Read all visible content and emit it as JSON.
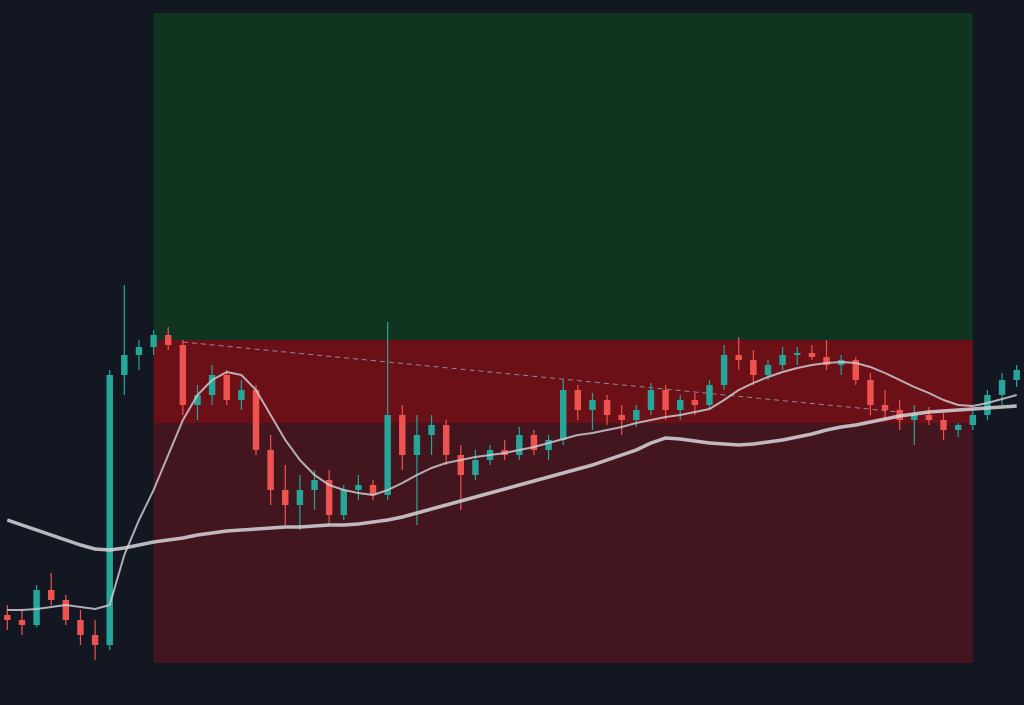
{
  "chart_data": {
    "type": "candlestick",
    "ylim": [
      0,
      705
    ],
    "colors": {
      "up": "#26a69a",
      "down": "#ef5350",
      "background": "#131722"
    },
    "open": [
      90,
      85,
      80,
      115,
      105,
      85,
      70,
      60,
      330,
      350,
      358,
      370,
      360,
      300,
      310,
      330,
      305,
      315,
      255,
      215,
      200,
      215,
      225,
      190,
      215,
      220,
      210,
      290,
      250,
      270,
      280,
      250,
      230,
      245,
      255,
      250,
      270,
      255,
      265,
      315,
      295,
      305,
      290,
      285,
      295,
      315,
      295,
      305,
      300,
      320,
      350,
      345,
      330,
      340,
      350,
      352,
      348,
      340,
      345,
      325,
      300,
      295,
      285,
      290,
      285,
      275,
      280,
      290,
      310,
      325
    ],
    "high": [
      100,
      95,
      120,
      132,
      110,
      95,
      85,
      335,
      420,
      365,
      375,
      378,
      365,
      320,
      340,
      335,
      325,
      320,
      270,
      240,
      230,
      235,
      235,
      220,
      230,
      225,
      383,
      300,
      290,
      290,
      285,
      260,
      255,
      260,
      265,
      278,
      275,
      270,
      325,
      320,
      312,
      310,
      300,
      300,
      322,
      320,
      310,
      312,
      325,
      360,
      368,
      355,
      345,
      358,
      358,
      360,
      365,
      350,
      348,
      332,
      315,
      305,
      300,
      298,
      292,
      282,
      295,
      315,
      332,
      340
    ],
    "low": [
      75,
      70,
      78,
      100,
      80,
      60,
      45,
      55,
      310,
      335,
      350,
      355,
      290,
      285,
      300,
      300,
      295,
      250,
      200,
      180,
      175,
      195,
      180,
      185,
      205,
      205,
      205,
      235,
      180,
      250,
      240,
      195,
      225,
      240,
      245,
      245,
      250,
      245,
      260,
      285,
      275,
      280,
      270,
      278,
      290,
      285,
      285,
      290,
      295,
      315,
      335,
      320,
      325,
      335,
      340,
      345,
      335,
      330,
      320,
      290,
      285,
      275,
      260,
      280,
      265,
      268,
      275,
      285,
      300,
      318
    ],
    "close": [
      85,
      80,
      115,
      105,
      85,
      70,
      60,
      330,
      350,
      358,
      370,
      360,
      300,
      310,
      330,
      305,
      315,
      255,
      215,
      200,
      215,
      225,
      190,
      215,
      220,
      210,
      290,
      250,
      270,
      280,
      250,
      230,
      245,
      255,
      250,
      270,
      255,
      265,
      315,
      295,
      305,
      290,
      285,
      295,
      315,
      295,
      305,
      300,
      320,
      350,
      345,
      330,
      340,
      350,
      352,
      348,
      340,
      345,
      325,
      300,
      295,
      285,
      290,
      285,
      275,
      280,
      290,
      310,
      325,
      335
    ],
    "series": [
      {
        "color": "#c9c9cf",
        "width": 2,
        "values": [
          95,
          95,
          96,
          98,
          100,
          98,
          96,
          100,
          150,
          185,
          215,
          250,
          285,
          310,
          325,
          333,
          330,
          315,
          290,
          265,
          245,
          230,
          220,
          215,
          212,
          210,
          215,
          222,
          230,
          237,
          242,
          245,
          248,
          250,
          252,
          255,
          258,
          262,
          266,
          270,
          272,
          275,
          278,
          282,
          285,
          288,
          290,
          293,
          296,
          305,
          315,
          322,
          328,
          333,
          337,
          340,
          342,
          343,
          342,
          338,
          332,
          325,
          318,
          312,
          305,
          300,
          299,
          302,
          306,
          310
        ]
      },
      {
        "color": "#d6d6db",
        "width": 3.5,
        "values": [
          185,
          180,
          175,
          170,
          165,
          160,
          156,
          155,
          157,
          160,
          163,
          165,
          167,
          170,
          172,
          174,
          175,
          176,
          177,
          178,
          178,
          179,
          180,
          180,
          181,
          183,
          185,
          188,
          192,
          196,
          200,
          204,
          208,
          212,
          216,
          220,
          224,
          228,
          232,
          236,
          240,
          245,
          250,
          255,
          262,
          267,
          266,
          264,
          262,
          261,
          260,
          261,
          263,
          265,
          268,
          271,
          275,
          278,
          280,
          283,
          286,
          289,
          291,
          293,
          294,
          295,
          296,
          297,
          298,
          299
        ]
      }
    ],
    "trendline": {
      "from": 12,
      "to": 61,
      "values": [
        363,
        293
      ],
      "color": "#8a8d96"
    },
    "zones": [
      {
        "from": 10,
        "to": 66,
        "top": 692,
        "bottom": 365,
        "color": "#0f3420"
      },
      {
        "from": 10,
        "to": 66,
        "top": 365,
        "bottom": 282,
        "color": "#6a1016"
      },
      {
        "from": 10,
        "to": 66,
        "top": 282,
        "bottom": 42,
        "color": "#43151e"
      }
    ]
  }
}
